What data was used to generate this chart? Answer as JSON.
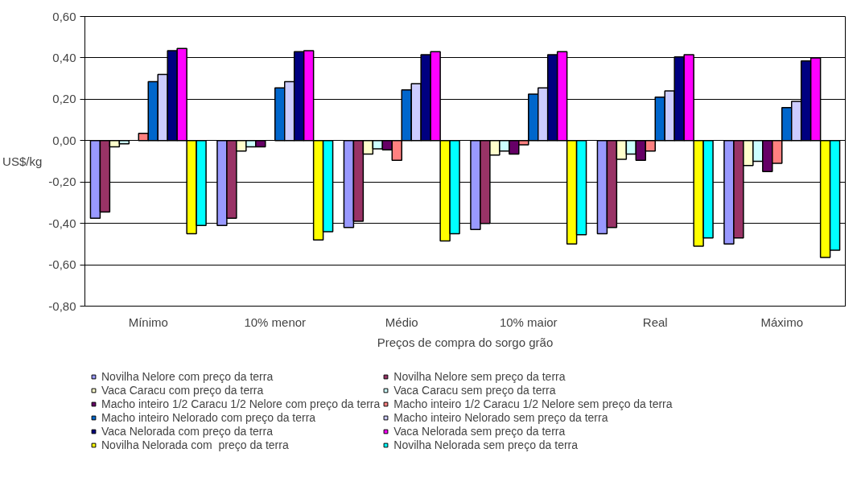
{
  "chart_data": {
    "type": "bar",
    "xlabel": "Preços de compra do sorgo grão",
    "ylabel": "US$/kg",
    "categories": [
      "Mínimo",
      "10% menor",
      "Médio",
      "10% maior",
      "Real",
      "Máximo"
    ],
    "ylim": [
      -0.8,
      0.6
    ],
    "yticks": [
      {
        "value": -0.8,
        "label": "-0,80"
      },
      {
        "value": -0.6,
        "label": "-0,60"
      },
      {
        "value": -0.4,
        "label": "-0,40"
      },
      {
        "value": -0.2,
        "label": "-0,20"
      },
      {
        "value": 0,
        "label": "0,00"
      },
      {
        "value": 0.2,
        "label": "0,20"
      },
      {
        "value": 0.4,
        "label": "0,40"
      },
      {
        "value": 0.6,
        "label": "0,60"
      }
    ],
    "grid": "y",
    "legend": "bottom",
    "series": [
      {
        "name": "Novilha Nelore com preço da terra",
        "color": "#9999ff",
        "values": [
          -0.375,
          -0.41,
          -0.42,
          -0.43,
          -0.45,
          -0.5
        ]
      },
      {
        "name": "Novilha Nelore sem preço da terra",
        "color": "#993366",
        "values": [
          -0.345,
          -0.375,
          -0.39,
          -0.4,
          -0.42,
          -0.47
        ]
      },
      {
        "name": "Vaca Caracu com preço da terra",
        "color": "#ffffcc",
        "values": [
          -0.03,
          -0.05,
          -0.065,
          -0.07,
          -0.09,
          -0.12
        ]
      },
      {
        "name": "Vaca Caracu sem preço da terra",
        "color": "#ccffff",
        "values": [
          -0.015,
          -0.03,
          -0.04,
          -0.05,
          -0.065,
          -0.1
        ]
      },
      {
        "name": "Macho inteiro 1/2 Caracu 1/2 Nelore com preço da terra",
        "color": "#660066",
        "values": [
          null,
          -0.03,
          -0.045,
          -0.065,
          -0.095,
          -0.15
        ]
      },
      {
        "name": "Macho inteiro 1/2 Caracu 1/2 Nelore sem preço da terra",
        "color": "#ff8080",
        "values": [
          0.035,
          null,
          -0.095,
          -0.02,
          -0.05,
          -0.11
        ]
      },
      {
        "name": "Macho inteiro Nelorado com preço da terra",
        "color": "#0066cc",
        "values": [
          0.285,
          0.255,
          0.245,
          0.225,
          0.21,
          0.16
        ]
      },
      {
        "name": "Macho inteiro Nelorado sem preço da terra",
        "color": "#ccccff",
        "values": [
          0.32,
          0.285,
          0.275,
          0.255,
          0.24,
          0.19
        ]
      },
      {
        "name": "Vaca Nelorada com preço da terra",
        "color": "#000080",
        "values": [
          0.435,
          0.43,
          0.415,
          0.415,
          0.405,
          0.385
        ]
      },
      {
        "name": "Vaca Nelorada sem preço da terra",
        "color": "#ff00ff",
        "values": [
          0.445,
          0.435,
          0.43,
          0.43,
          0.415,
          0.4
        ]
      },
      {
        "name": "Novilha Nelorada com  preço da terra",
        "color": "#ffff00",
        "values": [
          -0.45,
          -0.48,
          -0.485,
          -0.5,
          -0.51,
          -0.565
        ]
      },
      {
        "name": "Novilha Nelorada sem preço da terra",
        "color": "#00ffff",
        "values": [
          -0.41,
          -0.44,
          -0.45,
          -0.455,
          -0.47,
          -0.53
        ]
      }
    ]
  }
}
